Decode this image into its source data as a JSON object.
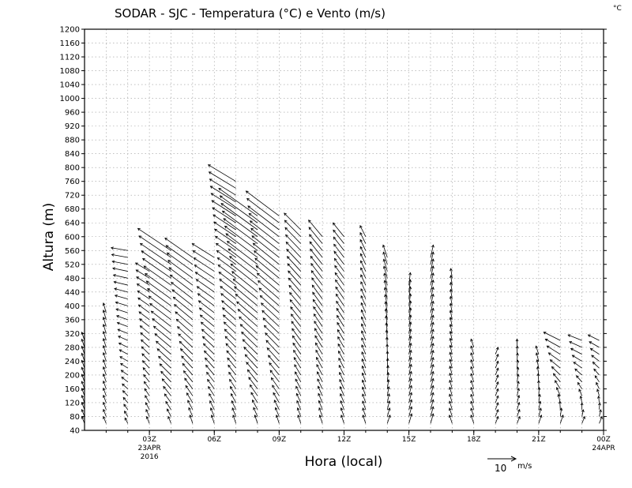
{
  "chart_data": {
    "type": "wind-profile",
    "title": "SODAR - SJC - Temperatura (°C) e Vento (m/s)",
    "unit_label": "°C",
    "xlabel": "Hora (local)",
    "ylabel": "Altura (m)",
    "ylim": [
      40,
      1200
    ],
    "yticks": [
      40,
      80,
      120,
      160,
      200,
      240,
      280,
      320,
      360,
      400,
      440,
      480,
      520,
      560,
      600,
      640,
      680,
      720,
      760,
      800,
      840,
      880,
      920,
      960,
      1000,
      1040,
      1080,
      1120,
      1160,
      1200
    ],
    "xlim_hours": [
      0,
      24
    ],
    "xticks": [
      {
        "hour": 3,
        "label": "03Z",
        "sub1": "23APR",
        "sub2": "2016"
      },
      {
        "hour": 6,
        "label": "06Z",
        "sub1": "",
        "sub2": ""
      },
      {
        "hour": 9,
        "label": "09Z",
        "sub1": "",
        "sub2": ""
      },
      {
        "hour": 12,
        "label": "12Z",
        "sub1": "",
        "sub2": ""
      },
      {
        "hour": 15,
        "label": "15Z",
        "sub1": "",
        "sub2": ""
      },
      {
        "hour": 18,
        "label": "18Z",
        "sub1": "",
        "sub2": ""
      },
      {
        "hour": 21,
        "label": "21Z",
        "sub1": "",
        "sub2": ""
      },
      {
        "hour": 24,
        "label": "00Z",
        "sub1": "24APR",
        "sub2": ""
      }
    ],
    "grid": true,
    "vector_scale": {
      "value": 10,
      "label": "10",
      "unit": "m/s"
    },
    "level_step_m": 20,
    "profiles": [
      {
        "hour": 0.0,
        "top": 300,
        "u0": -1.0,
        "v0": 2.5,
        "u1": -1.0,
        "v1": 3.0
      },
      {
        "hour": 1.0,
        "top": 380,
        "u0": -1.0,
        "v0": 2.5,
        "u1": -1.0,
        "v1": 3.5
      },
      {
        "hour": 2.0,
        "top": 560,
        "u0": -1.0,
        "v0": 2.0,
        "u1": -6.0,
        "v1": 1.0
      },
      {
        "hour": 3.0,
        "top": 500,
        "u0": -1.0,
        "v0": 2.5,
        "u1": -5.0,
        "v1": 3.0
      },
      {
        "hour": 4.0,
        "top": 560,
        "u0": -1.0,
        "v0": 2.5,
        "u1": -12.0,
        "v1": 8.0
      },
      {
        "hour": 5.0,
        "top": 540,
        "u0": -1.0,
        "v0": 3.0,
        "u1": -10.0,
        "v1": 7.0
      },
      {
        "hour": 6.0,
        "top": 540,
        "u0": -1.0,
        "v0": 3.0,
        "u1": -8.0,
        "v1": 5.0
      },
      {
        "hour": 7.0,
        "top": 760,
        "u0": -1.0,
        "v0": 3.0,
        "u1": -10.0,
        "v1": 6.0
      },
      {
        "hour": 8.0,
        "top": 660,
        "u0": -1.0,
        "v0": 3.0,
        "u1": -14.0,
        "v1": 10.0
      },
      {
        "hour": 9.0,
        "top": 660,
        "u0": -1.0,
        "v0": 3.0,
        "u1": -12.0,
        "v1": 9.0
      },
      {
        "hour": 10.0,
        "top": 620,
        "u0": -1.0,
        "v0": 3.0,
        "u1": -6.0,
        "v1": 6.0
      },
      {
        "hour": 11.0,
        "top": 600,
        "u0": -1.0,
        "v0": 3.0,
        "u1": -5.0,
        "v1": 6.0
      },
      {
        "hour": 12.0,
        "top": 600,
        "u0": -1.0,
        "v0": 3.0,
        "u1": -4.0,
        "v1": 5.0
      },
      {
        "hour": 13.0,
        "top": 600,
        "u0": -1.0,
        "v0": 3.0,
        "u1": -2.0,
        "v1": 4.0
      },
      {
        "hour": 14.0,
        "top": 540,
        "u0": 1.0,
        "v0": 3.0,
        "u1": -1.5,
        "v1": 4.5
      },
      {
        "hour": 15.0,
        "top": 460,
        "u0": 1.0,
        "v0": 3.5,
        "u1": 0.5,
        "v1": 4.5
      },
      {
        "hour": 16.0,
        "top": 540,
        "u0": 1.0,
        "v0": 3.5,
        "u1": 1.0,
        "v1": 4.5
      },
      {
        "hour": 17.0,
        "top": 480,
        "u0": -1.0,
        "v0": 3.0,
        "u1": -0.5,
        "v1": 3.5
      },
      {
        "hour": 18.0,
        "top": 280,
        "u0": -1.0,
        "v0": 3.0,
        "u1": -1.0,
        "v1": 3.0
      },
      {
        "hour": 19.0,
        "top": 260,
        "u0": 1.0,
        "v0": 2.5,
        "u1": 1.0,
        "v1": 2.5
      },
      {
        "hour": 20.0,
        "top": 280,
        "u0": 1.0,
        "v0": 2.5,
        "u1": 0.0,
        "v1": 3.0
      },
      {
        "hour": 21.0,
        "top": 260,
        "u0": 1.0,
        "v0": 3.0,
        "u1": -1.0,
        "v1": 3.0
      },
      {
        "hour": 22.0,
        "top": 300,
        "u0": 1.0,
        "v0": 3.0,
        "u1": -6.0,
        "v1": 3.0
      },
      {
        "hour": 23.0,
        "top": 300,
        "u0": 1.0,
        "v0": 2.5,
        "u1": -5.0,
        "v1": 2.0
      },
      {
        "hour": 23.8,
        "top": 300,
        "u0": 1.0,
        "v0": 2.5,
        "u1": -4.0,
        "v1": 2.0
      }
    ]
  }
}
